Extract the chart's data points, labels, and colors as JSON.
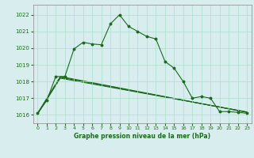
{
  "background_color": "#d8eeee",
  "grid_color": "#aaddcc",
  "line_color": "#1a6b1a",
  "title": "Graphe pression niveau de la mer (hPa)",
  "xlim": [
    -0.5,
    23.5
  ],
  "ylim": [
    1015.5,
    1022.6
  ],
  "yticks": [
    1016,
    1017,
    1018,
    1019,
    1020,
    1021,
    1022
  ],
  "xticks": [
    0,
    1,
    2,
    3,
    4,
    5,
    6,
    7,
    8,
    9,
    10,
    11,
    12,
    13,
    14,
    15,
    16,
    17,
    18,
    19,
    20,
    21,
    22,
    23
  ],
  "series1": {
    "x": [
      0,
      1,
      2,
      3,
      4,
      5,
      6,
      7,
      8,
      9,
      10,
      11,
      12,
      13,
      14,
      15,
      16,
      17,
      18,
      19,
      20,
      21,
      22,
      23
    ],
    "y": [
      1016.1,
      1016.85,
      1018.3,
      1018.3,
      1019.95,
      1020.35,
      1020.25,
      1020.2,
      1021.45,
      1022.0,
      1021.3,
      1021.0,
      1020.7,
      1020.55,
      1019.2,
      1018.8,
      1018.0,
      1017.0,
      1017.1,
      1017.0,
      1016.2,
      1016.2,
      1016.15,
      1016.1
    ]
  },
  "series2": {
    "x": [
      0,
      3,
      23
    ],
    "y": [
      1016.1,
      1018.3,
      1016.1
    ]
  },
  "series3": {
    "x": [
      0,
      3,
      23
    ],
    "y": [
      1016.1,
      1018.3,
      1016.1
    ]
  },
  "series4": {
    "x": [
      0,
      3,
      23
    ],
    "y": [
      1016.1,
      1018.3,
      1016.1
    ]
  }
}
